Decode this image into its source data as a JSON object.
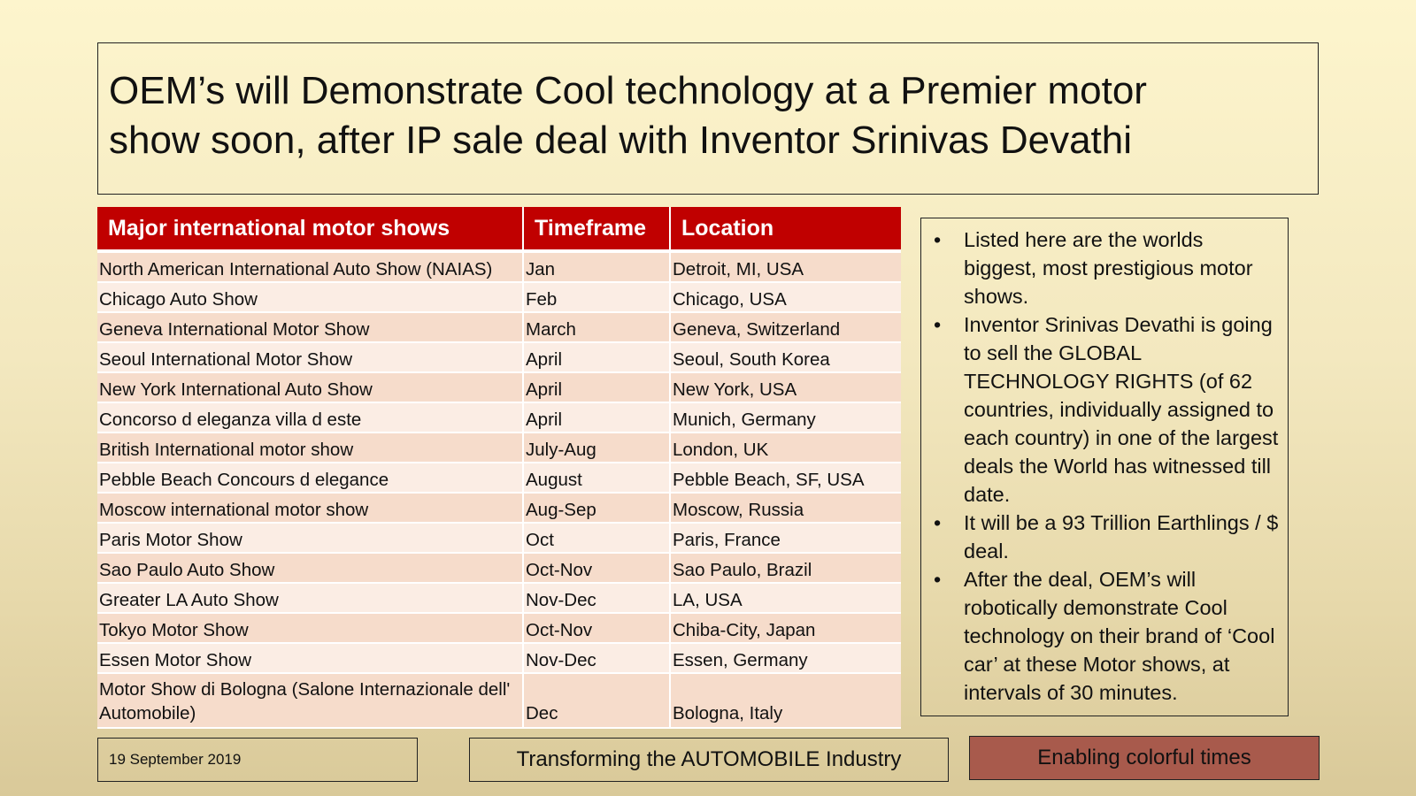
{
  "title": {
    "line1": "OEM’s will Demonstrate Cool technology at a Premier motor",
    "line2": "show soon, after IP sale deal with Inventor Srinivas Devathi"
  },
  "table": {
    "headers": [
      "Major international motor shows",
      "Timeframe",
      "Location"
    ],
    "rows": [
      {
        "show": "North American International Auto Show (NAIAS)",
        "time": "Jan",
        "location": "Detroit, MI, USA"
      },
      {
        "show": "Chicago Auto Show",
        "time": "Feb",
        "location": "Chicago, USA"
      },
      {
        "show": "Geneva International Motor Show",
        "time": "March",
        "location": "Geneva, Switzerland"
      },
      {
        "show": "Seoul International Motor Show",
        "time": "April",
        "location": "Seoul, South Korea"
      },
      {
        "show": "New York International Auto Show",
        "time": "April",
        "location": "New York, USA"
      },
      {
        "show": "Concorso d eleganza villa d este",
        "time": "April",
        "location": "Munich, Germany"
      },
      {
        "show": "British International motor show",
        "time": "July-Aug",
        "location": "London, UK"
      },
      {
        "show": "Pebble Beach Concours d elegance",
        "time": "August",
        "location": "Pebble Beach, SF, USA"
      },
      {
        "show": "Moscow international motor show",
        "time": "Aug-Sep",
        "location": "Moscow, Russia"
      },
      {
        "show": "Paris Motor Show",
        "time": "Oct",
        "location": "Paris, France"
      },
      {
        "show": "Sao Paulo Auto Show",
        "time": "Oct-Nov",
        "location": "Sao Paulo, Brazil"
      },
      {
        "show": "Greater LA Auto Show",
        "time": "Nov-Dec",
        "location": "LA, USA"
      },
      {
        "show": "Tokyo Motor Show",
        "time": "Oct-Nov",
        "location": "Chiba-City, Japan"
      },
      {
        "show": "Essen Motor Show",
        "time": "Nov-Dec",
        "location": "Essen, Germany"
      },
      {
        "show": "Motor Show di Bologna (Salone Internazionale dell' Automobile)",
        "time": "Dec",
        "location": "Bologna, Italy"
      }
    ]
  },
  "info": {
    "bullet_glyph": "•",
    "bullets": [
      "Listed here are the worlds biggest, most prestigious motor shows.",
      "Inventor Srinivas Devathi is going to sell the GLOBAL TECHNOLOGY RIGHTS (of 62 countries, individually assigned to each country) in one of the largest deals the World has witnessed till date.",
      "It will be a 93 Trillion Earthlings / $ deal.",
      "After the deal, OEM’s will robotically demonstrate Cool technology on their brand of ‘Cool car’ at these Motor shows, at intervals of 30 minutes."
    ]
  },
  "footer": {
    "date": "19 September 2019",
    "center": "Transforming the AUTOMOBILE Industry",
    "right": "Enabling colorful times"
  },
  "colors": {
    "header_red": "#c00000",
    "row_odd": "#f6dccb",
    "row_even": "#fbede4",
    "footer_right_bg": "#a85a4c"
  }
}
